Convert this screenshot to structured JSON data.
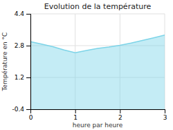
{
  "chart_data": {
    "type": "area",
    "title": "Evolution de la température",
    "xlabel": "heure par heure",
    "ylabel": "Température en °C",
    "x": [
      0,
      0.25,
      0.5,
      0.75,
      1.0,
      1.25,
      1.5,
      1.75,
      2.0,
      2.25,
      2.5,
      2.75,
      3.0
    ],
    "values": [
      3.0,
      2.88,
      2.75,
      2.58,
      2.44,
      2.56,
      2.66,
      2.73,
      2.82,
      2.93,
      3.06,
      3.19,
      3.33
    ],
    "color": "#7dd4e8",
    "xlim": [
      0,
      3
    ],
    "ylim": [
      -0.4,
      4.4
    ],
    "xticks": [
      0,
      1,
      2,
      3
    ],
    "yticks": [
      -0.4,
      1.2,
      2.8,
      4.4
    ],
    "grid": true
  }
}
